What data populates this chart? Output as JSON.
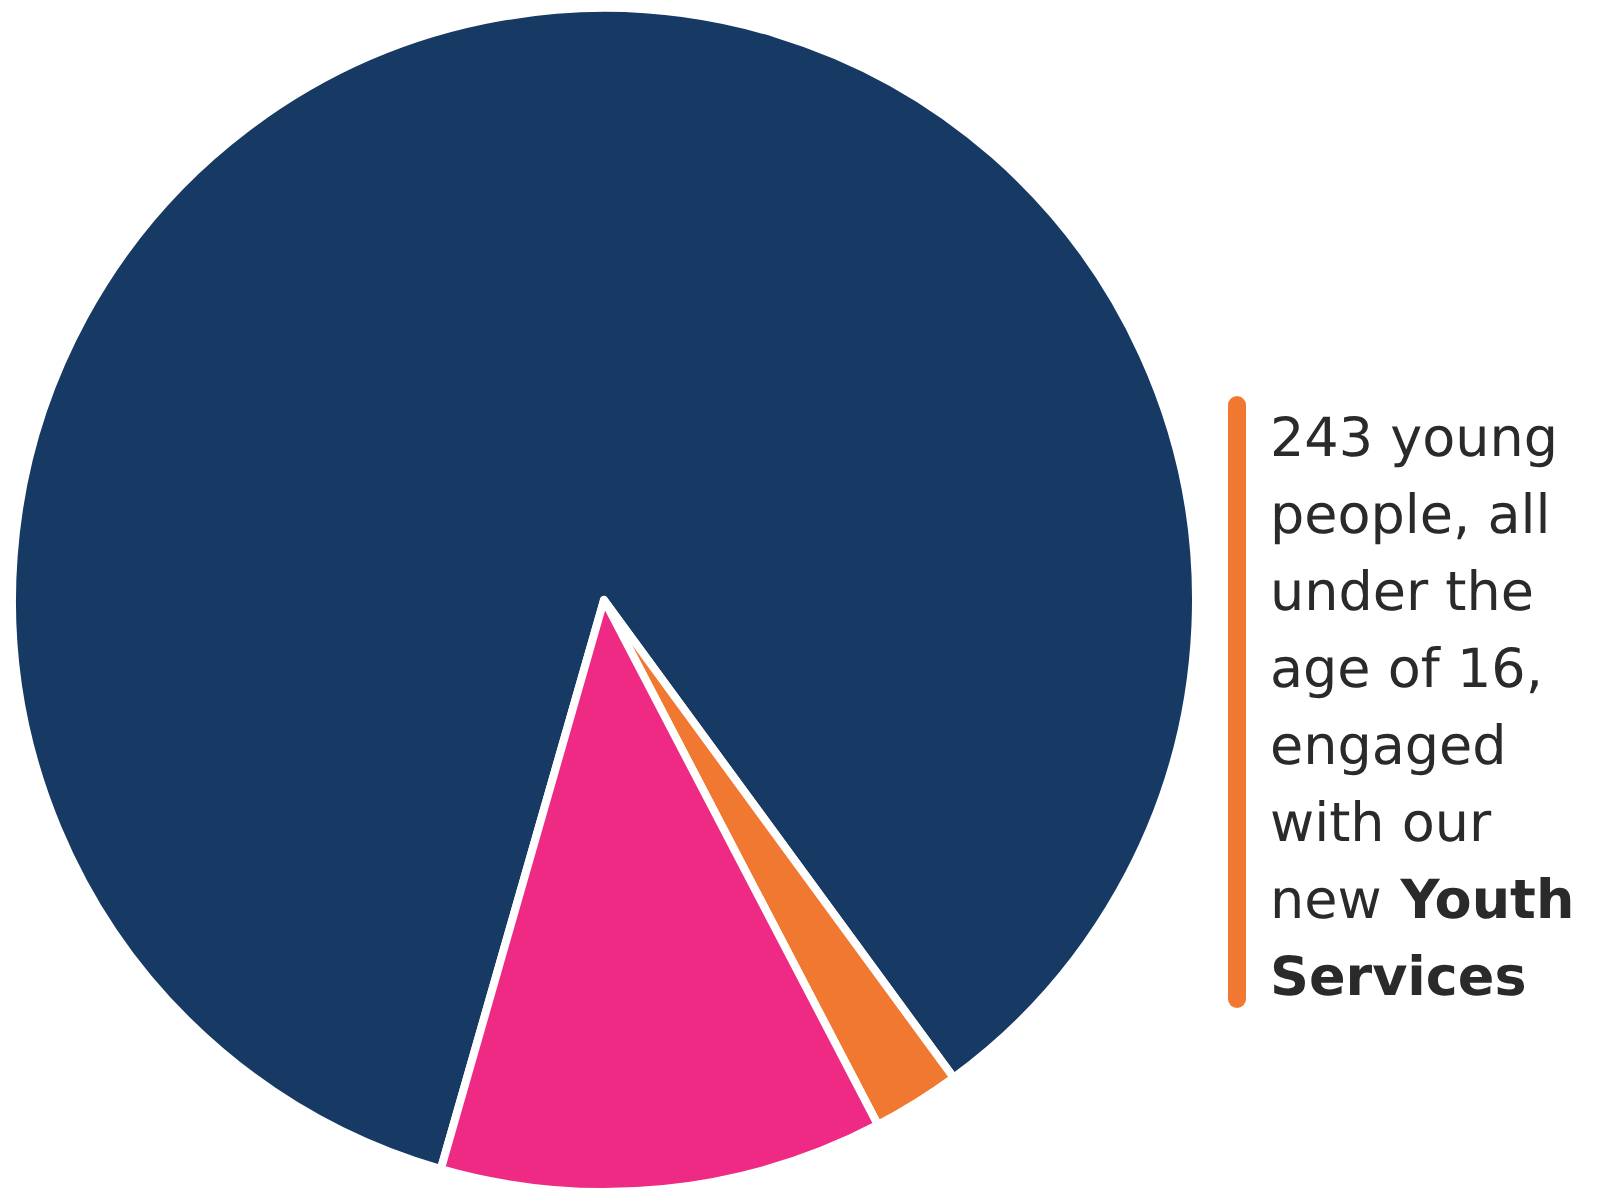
{
  "chart_data": {
    "type": "pie",
    "categories": [
      null,
      null,
      null
    ],
    "values": [
      85.5,
      2.4,
      12.1
    ],
    "colors": [
      "#173a64",
      "#f07830",
      "#ee2a84"
    ],
    "annotations": [
      "243 young people, all under the age of 16, engaged with our new",
      "Youth Services"
    ]
  }
}
